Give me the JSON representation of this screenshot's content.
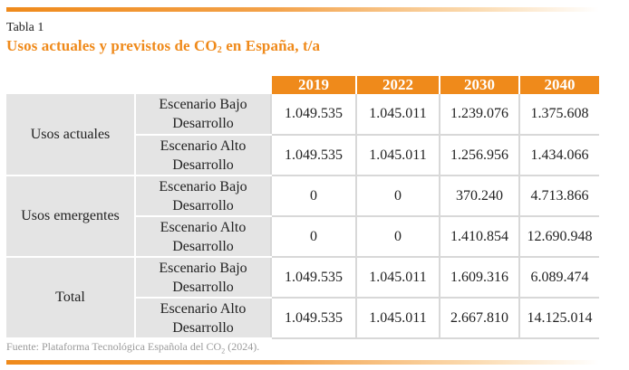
{
  "table_label": "Tabla 1",
  "title": {
    "prefix": "Usos actuales y previstos de CO",
    "subscript": "2",
    "suffix": " en España, t/a"
  },
  "columns": [
    "2019",
    "2022",
    "2030",
    "2040"
  ],
  "groups": [
    {
      "name": "Usos actuales",
      "rows": [
        {
          "scenario_line1": "Escenario Bajo",
          "scenario_line2": "Desarrollo",
          "values": [
            "1.049.535",
            "1.045.011",
            "1.239.076",
            "1.375.608"
          ]
        },
        {
          "scenario_line1": "Escenario Alto",
          "scenario_line2": "Desarrollo",
          "values": [
            "1.049.535",
            "1.045.011",
            "1.256.956",
            "1.434.066"
          ]
        }
      ]
    },
    {
      "name": "Usos emergentes",
      "rows": [
        {
          "scenario_line1": "Escenario Bajo",
          "scenario_line2": "Desarrollo",
          "values": [
            "0",
            "0",
            "370.240",
            "4.713.866"
          ]
        },
        {
          "scenario_line1": "Escenario Alto",
          "scenario_line2": "Desarrollo",
          "values": [
            "0",
            "0",
            "1.410.854",
            "12.690.948"
          ]
        }
      ]
    },
    {
      "name": "Total",
      "rows": [
        {
          "scenario_line1": "Escenario Bajo",
          "scenario_line2": "Desarrollo",
          "values": [
            "1.049.535",
            "1.045.011",
            "1.609.316",
            "6.089.474"
          ]
        },
        {
          "scenario_line1": "Escenario Alto",
          "scenario_line2": "Desarrollo",
          "values": [
            "1.049.535",
            "1.045.011",
            "2.667.810",
            "14.125.014"
          ]
        }
      ]
    }
  ],
  "source": {
    "prefix": "Fuente: Plataforma Tecnológica Española del CO",
    "subscript": "2",
    "suffix": " (2024)."
  },
  "accent_color": "#ef8a1b"
}
